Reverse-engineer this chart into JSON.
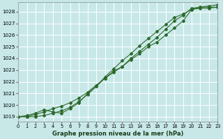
{
  "title": "Graphe pression niveau de la mer (hPa)",
  "bg_color": "#c8e8e8",
  "grid_color": "#ffffff",
  "line_color": "#2d6a2d",
  "x_min": 0,
  "x_max": 23,
  "y_min": 1018.6,
  "y_max": 1028.8,
  "y_ticks": [
    1019,
    1020,
    1021,
    1022,
    1023,
    1024,
    1025,
    1026,
    1027,
    1028
  ],
  "series1_x": [
    0,
    1,
    2,
    3,
    4,
    5,
    6,
    7,
    8,
    9,
    10,
    11,
    12,
    13,
    14,
    15,
    16,
    17,
    18,
    19,
    20,
    21,
    22,
    23
  ],
  "series1_y": [
    1019.0,
    1019.0,
    1019.2,
    1019.4,
    1019.7,
    1019.9,
    1020.2,
    1020.6,
    1021.1,
    1021.7,
    1022.3,
    1022.8,
    1023.3,
    1023.9,
    1024.4,
    1025.0,
    1025.4,
    1026.0,
    1026.6,
    1027.2,
    1028.2,
    1028.3,
    1028.3,
    1028.4
  ],
  "series2_x": [
    0,
    1,
    2,
    3,
    4,
    5,
    6,
    7,
    8,
    9,
    10,
    11,
    12,
    13,
    14,
    15,
    16,
    17,
    18,
    19,
    20,
    21,
    22,
    23
  ],
  "series2_y": [
    1019.0,
    1019.1,
    1019.3,
    1019.6,
    1019.4,
    1019.3,
    1019.7,
    1020.2,
    1021.0,
    1021.6,
    1022.3,
    1022.9,
    1023.3,
    1024.0,
    1024.6,
    1025.2,
    1025.8,
    1026.5,
    1027.2,
    1027.7,
    1028.3,
    1028.4,
    1028.4,
    1028.4
  ],
  "series3_x": [
    0,
    1,
    2,
    3,
    4,
    5,
    6,
    7,
    8,
    9,
    10,
    11,
    12,
    13,
    14,
    15,
    16,
    17,
    18,
    19,
    20,
    21,
    22,
    23
  ],
  "series3_y": [
    1019.0,
    1019.0,
    1019.0,
    1019.1,
    1019.3,
    1019.5,
    1019.8,
    1020.3,
    1020.9,
    1021.6,
    1022.4,
    1023.1,
    1023.8,
    1024.4,
    1025.1,
    1025.7,
    1026.3,
    1026.9,
    1027.5,
    1027.8,
    1028.2,
    1028.4,
    1028.5,
    1028.6
  ]
}
